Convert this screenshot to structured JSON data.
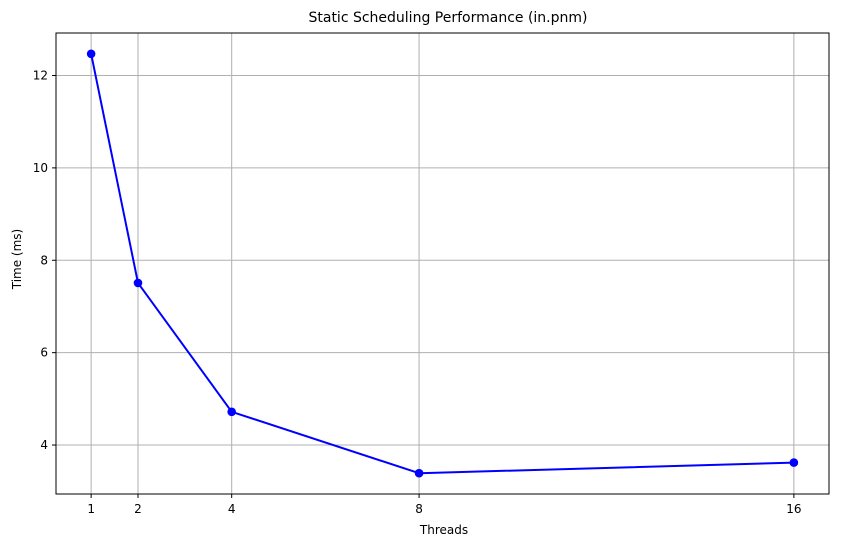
{
  "chart_data": {
    "type": "line",
    "title": "Static Scheduling Performance (in.pnm)",
    "xlabel": "Threads",
    "ylabel": "Time (ms)",
    "x": [
      1,
      2,
      4,
      8,
      16
    ],
    "series": [
      {
        "values": [
          12.47,
          7.51,
          4.72,
          3.39,
          3.62
        ],
        "color": "#0000ff",
        "marker": "circle"
      }
    ],
    "xticks": [
      1,
      2,
      4,
      8,
      16
    ],
    "yticks": [
      4,
      6,
      8,
      10,
      12
    ],
    "xlim": [
      0.25,
      16.75
    ],
    "ylim": [
      2.94,
      12.92
    ],
    "grid": true,
    "legend": "none"
  }
}
